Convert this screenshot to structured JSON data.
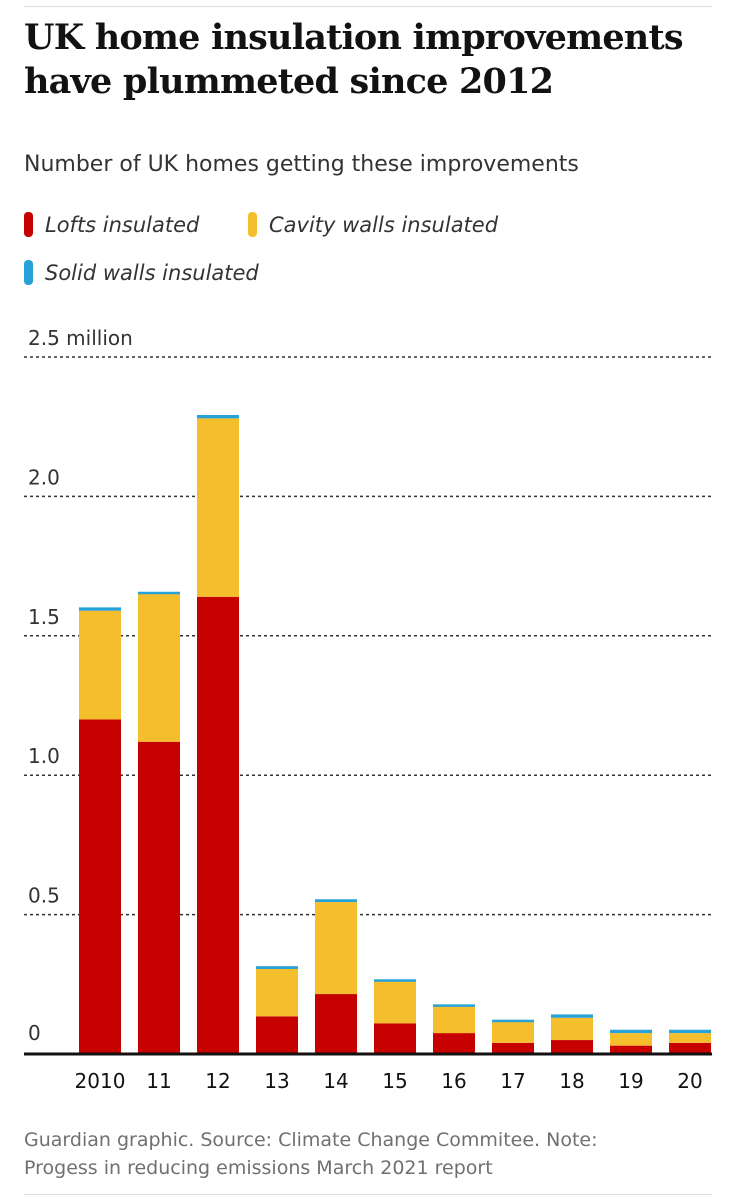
{
  "headline": "UK home insulation improvements have plummeted since 2012",
  "subtitle": "Number of UK homes getting these improvements",
  "legend": [
    {
      "label": "Lofts insulated",
      "color": "#c70000"
    },
    {
      "label": "Cavity walls insulated",
      "color": "#f5be2c"
    },
    {
      "label": "Solid walls insulated",
      "color": "#27a2d9"
    }
  ],
  "footer": {
    "line1": "Guardian graphic. Source: Climate Change Commitee. Note:",
    "line2": "Progess in reducing emissions March 2021 report"
  },
  "chart_data": {
    "type": "bar",
    "stacked": true,
    "categories": [
      "2010",
      "11",
      "12",
      "13",
      "14",
      "15",
      "16",
      "17",
      "18",
      "19",
      "20"
    ],
    "series": [
      {
        "name": "Lofts insulated",
        "color": "#c70000",
        "values": [
          1.2,
          1.12,
          1.64,
          0.135,
          0.215,
          0.11,
          0.075,
          0.04,
          0.05,
          0.03,
          0.04
        ]
      },
      {
        "name": "Cavity walls insulated",
        "color": "#f5be2c",
        "values": [
          0.39,
          0.53,
          0.64,
          0.17,
          0.33,
          0.15,
          0.095,
          0.075,
          0.08,
          0.045,
          0.035
        ]
      },
      {
        "name": "Solid walls insulated",
        "color": "#27a2d9",
        "values": [
          0.012,
          0.008,
          0.012,
          0.01,
          0.01,
          0.008,
          0.008,
          0.008,
          0.012,
          0.012,
          0.012
        ]
      }
    ],
    "ylim": [
      0,
      2.5
    ],
    "yticks": [
      {
        "value": 2.5,
        "label": "2.5 million"
      },
      {
        "value": 2.0,
        "label": "2.0"
      },
      {
        "value": 1.5,
        "label": "1.5"
      },
      {
        "value": 1.0,
        "label": "1.0"
      },
      {
        "value": 0.5,
        "label": "0.5"
      },
      {
        "value": 0,
        "label": "0"
      }
    ],
    "grid": true,
    "legend_position": "top-left"
  }
}
